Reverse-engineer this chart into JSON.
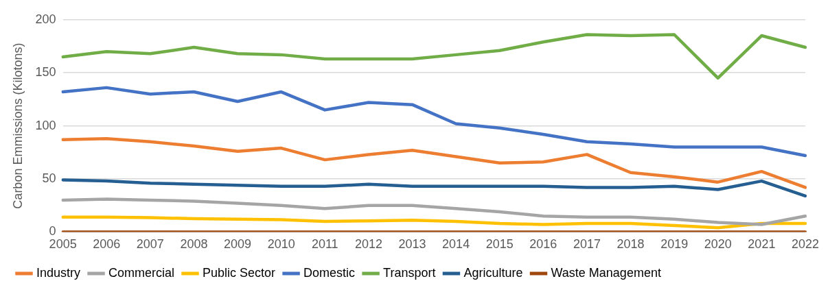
{
  "chart_data": {
    "type": "line",
    "ylabel": "Carbon Emmissions (Kilotons)",
    "categories": [
      "2005",
      "2006",
      "2007",
      "2008",
      "2009",
      "2010",
      "2011",
      "2012",
      "2013",
      "2014",
      "2015",
      "2016",
      "2017",
      "2018",
      "2019",
      "2020",
      "2021",
      "2022"
    ],
    "ylim": [
      0,
      200
    ],
    "yticks": [
      0,
      50,
      100,
      150,
      200
    ],
    "grid": "y",
    "legend": "bottom",
    "marker": "none",
    "line_style": "solid",
    "series": [
      {
        "name": "Industry",
        "color": "#ed7d31",
        "values": [
          87,
          88,
          85,
          81,
          76,
          79,
          68,
          73,
          77,
          71,
          65,
          66,
          73,
          56,
          52,
          47,
          57,
          42
        ]
      },
      {
        "name": "Commercial",
        "color": "#a5a5a5",
        "values": [
          30,
          31,
          30,
          29,
          27,
          25,
          22,
          25,
          25,
          22,
          19,
          15,
          14,
          14,
          12,
          9,
          7,
          15
        ]
      },
      {
        "name": "Public Sector",
        "color": "#ffc000",
        "values": [
          14,
          14,
          13.5,
          12.5,
          12,
          11.5,
          10,
          10.5,
          11,
          10,
          8,
          7,
          8,
          8,
          6,
          4,
          8,
          8
        ]
      },
      {
        "name": "Domestic",
        "color": "#4472c4",
        "values": [
          132,
          136,
          130,
          132,
          123,
          132,
          115,
          122,
          120,
          102,
          98,
          92,
          85,
          83,
          80,
          80,
          80,
          72
        ]
      },
      {
        "name": "Transport",
        "color": "#70ad47",
        "values": [
          165,
          170,
          168,
          174,
          168,
          167,
          163,
          163,
          163,
          167,
          171,
          179,
          186,
          185,
          186,
          145,
          185,
          174
        ]
      },
      {
        "name": "Agriculture",
        "color": "#255e91",
        "values": [
          49,
          48,
          46,
          45,
          44,
          43,
          43,
          45,
          43,
          43,
          43,
          43,
          42,
          42,
          43,
          40,
          48,
          34
        ]
      },
      {
        "name": "Waste Management",
        "color": "#9e480e",
        "values": [
          0,
          0,
          0,
          0,
          0,
          0,
          0,
          0,
          0,
          0,
          0,
          0,
          0,
          0,
          0,
          0,
          0,
          0
        ]
      }
    ]
  }
}
